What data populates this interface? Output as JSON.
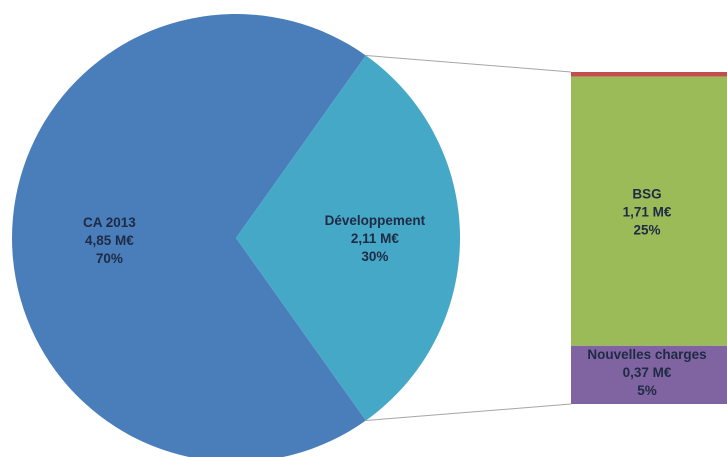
{
  "chart_data": {
    "type": "pie",
    "variant": "bar-of-pie",
    "title": "",
    "pie": [
      {
        "category": "CA 2013",
        "value": 4.85,
        "value_label": "4,85 M€",
        "percent_label": "70%",
        "color": "#4a7ebb"
      },
      {
        "category": "Développement",
        "value": 2.11,
        "value_label": "2,11 M€",
        "percent_label": "30%",
        "color": "#45a8c6"
      }
    ],
    "breakdown_of": "Développement",
    "bar": [
      {
        "category": "",
        "value": 0.03,
        "value_label": "",
        "percent_label": "",
        "color": "#c0504d"
      },
      {
        "category": "BSG",
        "value": 1.71,
        "value_label": "1,71 M€",
        "percent_label": "25%",
        "color": "#9bbb59"
      },
      {
        "category": "Nouvelles charges",
        "value": 0.37,
        "value_label": "0,37 M€",
        "percent_label": "5%",
        "color": "#8064a2"
      }
    ],
    "label_color": "#1f2a44",
    "legend": "none"
  }
}
